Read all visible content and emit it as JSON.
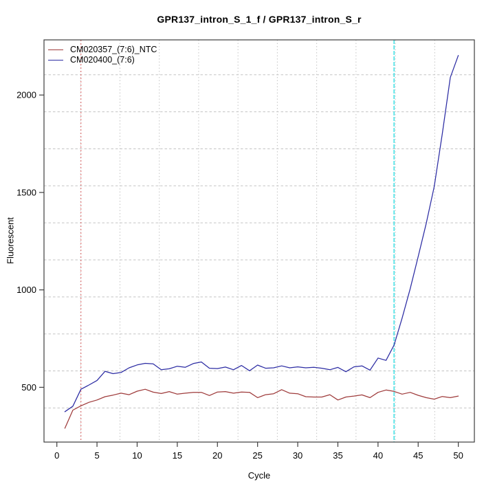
{
  "chart_data": {
    "type": "line",
    "title": "GPR137_intron_S_1_f / GPR137_intron_S_r",
    "xlabel": "Cycle",
    "ylabel": "Fluorescent",
    "xlim": [
      -1.6,
      52.0
    ],
    "ylim": [
      219,
      2283
    ],
    "xticks": [
      0,
      5,
      10,
      15,
      20,
      25,
      30,
      35,
      40,
      45,
      50
    ],
    "yticks": [
      500,
      1000,
      1500,
      2000
    ],
    "grid": true,
    "legend_position": "top-left",
    "x": [
      1,
      2,
      3,
      4,
      5,
      6,
      7,
      8,
      9,
      10,
      11,
      12,
      13,
      14,
      15,
      16,
      17,
      18,
      19,
      20,
      21,
      22,
      23,
      24,
      25,
      26,
      27,
      28,
      29,
      30,
      31,
      32,
      33,
      34,
      35,
      36,
      37,
      38,
      39,
      40,
      41,
      42,
      43,
      44,
      45,
      46,
      47,
      48,
      49,
      50
    ],
    "series": [
      {
        "name": "CM020357_(7:6)_NTC",
        "color": "#9e3a3a",
        "values": [
          290,
          383,
          405,
          423,
          435,
          452,
          460,
          470,
          462,
          480,
          490,
          475,
          468,
          478,
          465,
          470,
          474,
          474,
          458,
          476,
          478,
          470,
          476,
          474,
          447,
          462,
          467,
          488,
          470,
          467,
          452,
          450,
          450,
          462,
          435,
          450,
          455,
          461,
          447,
          474,
          486,
          479,
          465,
          474,
          459,
          447,
          439,
          453,
          447,
          455
        ]
      },
      {
        "name": "CM020400_(7:6)",
        "color": "#2b2ba3",
        "values": [
          375,
          403,
          490,
          512,
          535,
          582,
          570,
          576,
          600,
          615,
          623,
          620,
          590,
          595,
          608,
          603,
          622,
          630,
          598,
          596,
          604,
          590,
          612,
          585,
          614,
          598,
          600,
          610,
          600,
          605,
          600,
          603,
          598,
          590,
          602,
          580,
          605,
          610,
          588,
          650,
          638,
          717,
          855,
          1005,
          1170,
          1340,
          1530,
          1800,
          2090,
          2203
        ]
      }
    ],
    "vlines": [
      {
        "x": 3,
        "color": "#e07878",
        "dash": "2,3",
        "width": 1.2
      },
      {
        "x": 42,
        "color": "#55e4e8",
        "dash": "6,2",
        "width": 1.8
      }
    ]
  },
  "colors": {
    "background": "#ffffff",
    "axis_box": "#3c3c3c",
    "grid": "#c3c3c3",
    "text": "#000000"
  }
}
